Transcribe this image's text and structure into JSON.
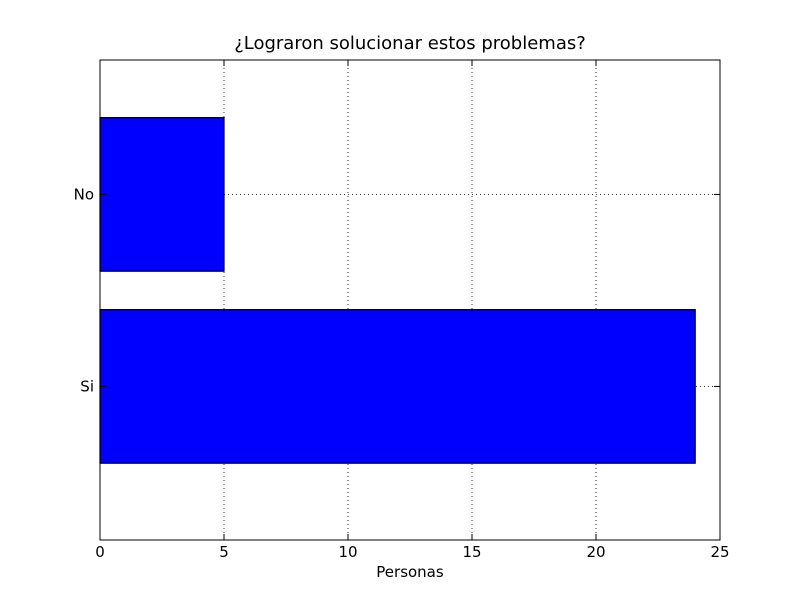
{
  "chart_data": {
    "type": "bar",
    "orientation": "horizontal",
    "title": "¿Lograron solucionar estos problemas?",
    "xlabel": "Personas",
    "ylabel": "",
    "categories": [
      "Si",
      "No"
    ],
    "values": [
      24,
      5
    ],
    "xlim": [
      0,
      25
    ],
    "xticks": [
      0,
      5,
      10,
      15,
      20,
      25
    ],
    "grid": true,
    "legend": "none",
    "bar_color": "#0000ff",
    "edge_color": "#000000"
  }
}
